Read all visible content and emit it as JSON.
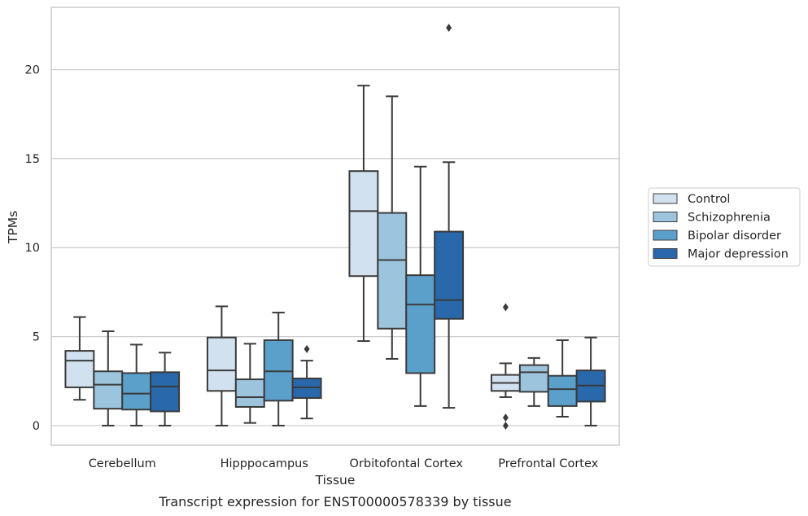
{
  "caption": "Transcript expression for ENST00000578339 by tissue",
  "chart_data": {
    "type": "box",
    "xlabel": "Tissue",
    "ylabel": "TPMs",
    "ylim": [
      -1.1,
      23.5
    ],
    "yticks": [
      0,
      5,
      10,
      15,
      20
    ],
    "grid": true,
    "legend_position": "right",
    "categories": [
      "Cerebellum",
      "Hipppocampus",
      "Orbitofontal Cortex",
      "Prefrontal Cortex"
    ],
    "series": [
      {
        "name": "Control",
        "color": "#d1e1f0",
        "boxes": [
          {
            "whislo": 1.45,
            "q1": 2.15,
            "med": 3.65,
            "q3": 4.2,
            "whishi": 6.1,
            "fliers": []
          },
          {
            "whislo": 0.0,
            "q1": 1.95,
            "med": 3.1,
            "q3": 4.95,
            "whishi": 6.7,
            "fliers": []
          },
          {
            "whislo": 4.75,
            "q1": 8.4,
            "med": 12.05,
            "q3": 14.3,
            "whishi": 19.1,
            "fliers": []
          },
          {
            "whislo": 1.6,
            "q1": 1.95,
            "med": 2.4,
            "q3": 2.85,
            "whishi": 3.5,
            "fliers": [
              6.65,
              0.45,
              0.0
            ]
          }
        ]
      },
      {
        "name": "Schizophrenia",
        "color": "#9cc4dc",
        "boxes": [
          {
            "whislo": 0.0,
            "q1": 0.95,
            "med": 2.3,
            "q3": 3.05,
            "whishi": 5.3,
            "fliers": []
          },
          {
            "whislo": 0.15,
            "q1": 1.05,
            "med": 1.6,
            "q3": 2.6,
            "whishi": 4.6,
            "fliers": []
          },
          {
            "whislo": 3.75,
            "q1": 5.45,
            "med": 9.3,
            "q3": 11.95,
            "whishi": 18.5,
            "fliers": []
          },
          {
            "whislo": 1.1,
            "q1": 1.9,
            "med": 3.0,
            "q3": 3.4,
            "whishi": 3.8,
            "fliers": []
          }
        ]
      },
      {
        "name": "Bipolar disorder",
        "color": "#5b9fcb",
        "boxes": [
          {
            "whislo": 0.0,
            "q1": 0.9,
            "med": 1.8,
            "q3": 2.95,
            "whishi": 4.55,
            "fliers": []
          },
          {
            "whislo": 0.0,
            "q1": 1.4,
            "med": 3.05,
            "q3": 4.8,
            "whishi": 6.35,
            "fliers": []
          },
          {
            "whislo": 1.1,
            "q1": 2.95,
            "med": 6.8,
            "q3": 8.45,
            "whishi": 14.55,
            "fliers": []
          },
          {
            "whislo": 0.5,
            "q1": 1.1,
            "med": 2.05,
            "q3": 2.8,
            "whishi": 4.8,
            "fliers": []
          }
        ]
      },
      {
        "name": "Major depression",
        "color": "#2868ab",
        "boxes": [
          {
            "whislo": 0.0,
            "q1": 0.8,
            "med": 2.2,
            "q3": 3.0,
            "whishi": 4.1,
            "fliers": []
          },
          {
            "whislo": 0.4,
            "q1": 1.55,
            "med": 2.15,
            "q3": 2.65,
            "whishi": 3.65,
            "fliers": [
              4.3
            ]
          },
          {
            "whislo": 1.0,
            "q1": 6.0,
            "med": 7.05,
            "q3": 10.9,
            "whishi": 14.8,
            "fliers": [
              22.35
            ]
          },
          {
            "whislo": 0.0,
            "q1": 1.35,
            "med": 2.25,
            "q3": 3.1,
            "whishi": 4.95,
            "fliers": []
          }
        ]
      }
    ]
  }
}
